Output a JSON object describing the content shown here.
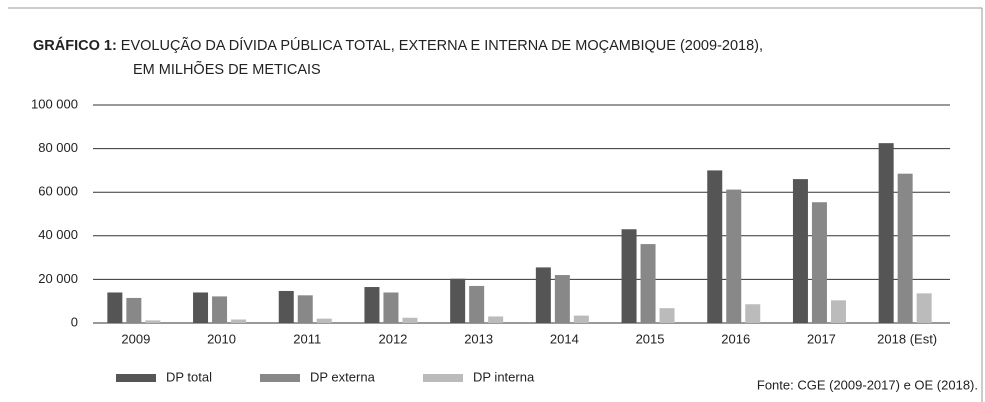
{
  "chart_data": {
    "type": "bar",
    "label": "GRÁFICO 1:",
    "title": "EVOLUÇÃO DA DÍVIDA PÚBLICA TOTAL, EXTERNA E INTERNA DE MOÇAMBIQUE (2009-2018),",
    "subtitle": "EM MILHÕES DE METICAIS",
    "source": "Fonte: CGE (2009-2017) e OE (2018).",
    "categories": [
      "2009",
      "2010",
      "2011",
      "2012",
      "2013",
      "2014",
      "2015",
      "2016",
      "2017",
      "2018 (Est)"
    ],
    "series": [
      {
        "name": "DP total",
        "color": "#555555",
        "values": [
          14000,
          14000,
          14700,
          16500,
          20300,
          25500,
          43000,
          70000,
          66000,
          82500
        ]
      },
      {
        "name": "DP externa",
        "color": "#888888",
        "values": [
          11500,
          12200,
          12700,
          14000,
          17000,
          22000,
          36200,
          61200,
          55400,
          68500
        ]
      },
      {
        "name": "DP interna",
        "color": "#bbbbbb",
        "values": [
          1200,
          1600,
          2000,
          2400,
          3000,
          3400,
          6800,
          8600,
          10400,
          13600
        ]
      }
    ],
    "ylim": [
      0,
      100000
    ],
    "yticks": [
      0,
      {
        "value": 20000,
        "label": "20 000"
      },
      {
        "value": 40000,
        "label": "40 000"
      },
      {
        "value": 60000,
        "label": "60 000"
      },
      {
        "value": 80000,
        "label": "80 000"
      },
      {
        "value": 100000,
        "label": "100 000"
      }
    ],
    "grid": true
  }
}
